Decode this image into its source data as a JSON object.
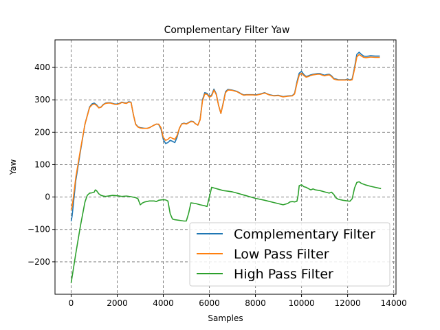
{
  "chart_data": {
    "type": "line",
    "title": "Complementary Filter Yaw",
    "xlabel": "Samples",
    "ylabel": "Yaw",
    "xlim": [
      -700,
      14100
    ],
    "ylim": [
      -300,
      485
    ],
    "xticks": [
      0,
      2000,
      4000,
      6000,
      8000,
      10000,
      12000,
      14000
    ],
    "xtick_labels": [
      "0",
      "2000",
      "4000",
      "6000",
      "8000",
      "10000",
      "12000",
      "14000"
    ],
    "yticks": [
      -200,
      -100,
      0,
      100,
      200,
      300,
      400
    ],
    "ytick_labels": [
      "−200",
      "−100",
      "0",
      "100",
      "200",
      "300",
      "400"
    ],
    "grid": true,
    "legend_position": "bottom-right",
    "series": [
      {
        "name": "Complementary Filter",
        "color": "#1f77b4",
        "x": [
          0,
          40,
          100,
          200,
          400,
          600,
          800,
          900,
          1000,
          1100,
          1200,
          1300,
          1400,
          1500,
          1600,
          1700,
          1800,
          1900,
          2000,
          2100,
          2200,
          2300,
          2400,
          2500,
          2600,
          2700,
          2800,
          2900,
          3000,
          3100,
          3200,
          3300,
          3400,
          3500,
          3600,
          3700,
          3800,
          3900,
          4000,
          4100,
          4200,
          4300,
          4400,
          4500,
          4600,
          4700,
          4800,
          4900,
          5000,
          5100,
          5200,
          5300,
          5400,
          5500,
          5600,
          5700,
          5800,
          5900,
          6000,
          6100,
          6200,
          6300,
          6400,
          6500,
          6600,
          6700,
          6800,
          6900,
          7000,
          7100,
          7200,
          7300,
          7400,
          7500,
          7600,
          7700,
          7800,
          7900,
          8000,
          8200,
          8400,
          8600,
          8800,
          9000,
          9200,
          9400,
          9600,
          9700,
          9800,
          9900,
          10000,
          10100,
          10200,
          10300,
          10400,
          10500,
          10600,
          10700,
          10800,
          10900,
          11000,
          11100,
          11200,
          11300,
          11400,
          11500,
          11600,
          11700,
          11800,
          11900,
          12000,
          12100,
          12200,
          12300,
          12400,
          12500,
          12600,
          12700,
          12800,
          12900,
          13000,
          13200,
          13400
        ],
        "y": [
          -75,
          -60,
          -20,
          50,
          140,
          225,
          278,
          287,
          290,
          285,
          276,
          278,
          286,
          290,
          291,
          291,
          289,
          287,
          287,
          289,
          293,
          291,
          290,
          294,
          293,
          255,
          225,
          217,
          214,
          213,
          212,
          212,
          214,
          218,
          222,
          225,
          224,
          210,
          178,
          165,
          168,
          175,
          172,
          168,
          185,
          212,
          226,
          228,
          226,
          230,
          234,
          233,
          226,
          222,
          240,
          300,
          322,
          320,
          310,
          315,
          333,
          318,
          283,
          258,
          290,
          325,
          332,
          331,
          330,
          328,
          326,
          322,
          318,
          315,
          316,
          316,
          316,
          316,
          315,
          318,
          322,
          316,
          313,
          314,
          310,
          312,
          313,
          320,
          355,
          382,
          388,
          378,
          372,
          374,
          377,
          379,
          380,
          381,
          381,
          378,
          376,
          378,
          379,
          374,
          366,
          364,
          362,
          362,
          362,
          362,
          364,
          361,
          365,
          400,
          440,
          447,
          440,
          435,
          434,
          435,
          436,
          435,
          435
        ]
      },
      {
        "name": "Low Pass Filter",
        "color": "#ff7f0e",
        "x": [
          0,
          40,
          100,
          200,
          400,
          600,
          800,
          900,
          1000,
          1100,
          1200,
          1300,
          1400,
          1500,
          1600,
          1700,
          1800,
          1900,
          2000,
          2100,
          2200,
          2300,
          2400,
          2500,
          2600,
          2700,
          2800,
          2900,
          3000,
          3100,
          3200,
          3300,
          3400,
          3500,
          3600,
          3700,
          3800,
          3900,
          4000,
          4100,
          4200,
          4300,
          4400,
          4500,
          4600,
          4700,
          4800,
          4900,
          5000,
          5100,
          5200,
          5300,
          5400,
          5500,
          5600,
          5700,
          5800,
          5900,
          6000,
          6100,
          6200,
          6300,
          6400,
          6500,
          6600,
          6700,
          6800,
          6900,
          7000,
          7100,
          7200,
          7300,
          7400,
          7500,
          7600,
          7700,
          7800,
          7900,
          8000,
          8200,
          8400,
          8600,
          8800,
          9000,
          9200,
          9400,
          9600,
          9700,
          9800,
          9900,
          10000,
          10100,
          10200,
          10300,
          10400,
          10500,
          10600,
          10700,
          10800,
          10900,
          11000,
          11100,
          11200,
          11300,
          11400,
          11500,
          11600,
          11700,
          11800,
          11900,
          12000,
          12100,
          12200,
          12300,
          12400,
          12500,
          12600,
          12700,
          12800,
          12900,
          13000,
          13200,
          13400
        ],
        "y": [
          -40,
          -30,
          0,
          60,
          145,
          225,
          276,
          284,
          287,
          283,
          275,
          277,
          285,
          289,
          290,
          290,
          288,
          286,
          286,
          288,
          292,
          290,
          289,
          293,
          292,
          256,
          224,
          216,
          213,
          212,
          212,
          212,
          214,
          218,
          222,
          225,
          225,
          214,
          184,
          175,
          178,
          185,
          181,
          178,
          190,
          213,
          225,
          227,
          225,
          229,
          233,
          232,
          226,
          222,
          238,
          296,
          318,
          317,
          308,
          312,
          330,
          316,
          283,
          258,
          288,
          322,
          330,
          330,
          329,
          327,
          325,
          321,
          317,
          314,
          315,
          315,
          315,
          315,
          314,
          317,
          321,
          315,
          312,
          313,
          309,
          311,
          312,
          318,
          350,
          376,
          382,
          375,
          370,
          372,
          375,
          377,
          378,
          379,
          379,
          376,
          374,
          376,
          377,
          372,
          364,
          362,
          361,
          361,
          361,
          361,
          362,
          360,
          362,
          395,
          432,
          440,
          435,
          431,
          430,
          431,
          432,
          431,
          431
        ]
      },
      {
        "name": "High Pass Filter",
        "color": "#2ca02c",
        "x": [
          0,
          200,
          400,
          600,
          700,
          800,
          900,
          1000,
          1050,
          1100,
          1200,
          1300,
          1400,
          1500,
          1600,
          1800,
          2000,
          2100,
          2200,
          2400,
          2600,
          2800,
          2900,
          3000,
          3100,
          3200,
          3400,
          3600,
          3700,
          3800,
          3900,
          4000,
          4100,
          4200,
          4300,
          4400,
          4500,
          4700,
          4900,
          5000,
          5100,
          5200,
          5400,
          5600,
          5800,
          5900,
          6000,
          6100,
          6200,
          6400,
          6600,
          6800,
          7000,
          7200,
          7400,
          7600,
          7800,
          8000,
          8400,
          8800,
          9200,
          9400,
          9500,
          9600,
          9700,
          9800,
          9850,
          9900,
          10000,
          10100,
          10200,
          10300,
          10400,
          10500,
          10600,
          10800,
          11000,
          11200,
          11300,
          11400,
          11500,
          11600,
          11800,
          12000,
          12100,
          12200,
          12300,
          12400,
          12500,
          12600,
          12800,
          13000,
          13200,
          13450
        ],
        "y": [
          -265,
          -175,
          -90,
          -15,
          5,
          12,
          13,
          15,
          22,
          20,
          10,
          5,
          3,
          2,
          3,
          5,
          4,
          3,
          2,
          3,
          1,
          -2,
          -5,
          -24,
          -18,
          -15,
          -12,
          -12,
          -14,
          -10,
          -9,
          -8,
          -9,
          -12,
          -52,
          -68,
          -70,
          -72,
          -74,
          -74,
          -50,
          -18,
          -20,
          -24,
          -27,
          -29,
          0,
          30,
          28,
          24,
          20,
          18,
          16,
          12,
          8,
          4,
          0,
          -4,
          -10,
          -17,
          -24,
          -20,
          -15,
          -14,
          -15,
          -13,
          5,
          35,
          38,
          32,
          30,
          26,
          22,
          25,
          22,
          20,
          16,
          12,
          15,
          8,
          -3,
          -7,
          -10,
          -12,
          -13,
          -5,
          28,
          45,
          47,
          42,
          37,
          33,
          30,
          26
        ]
      }
    ]
  }
}
